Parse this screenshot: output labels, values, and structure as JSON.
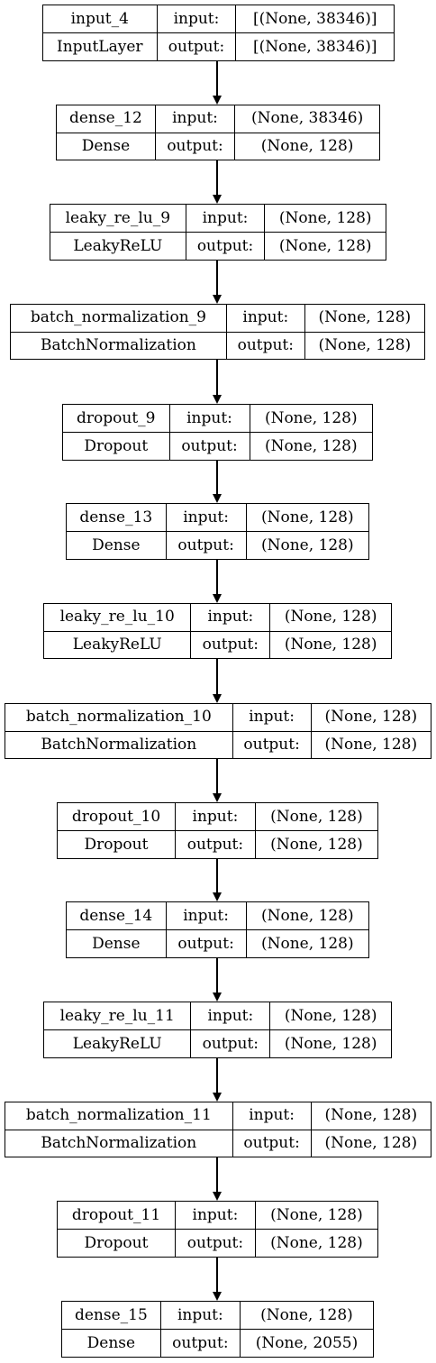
{
  "diagram": {
    "layers": [
      {
        "name": "input_4",
        "type": "InputLayer",
        "input_label": "input:",
        "input_shape": "[(None, 38346)]",
        "output_label": "output:",
        "output_shape": "[(None, 38346)]"
      },
      {
        "name": "dense_12",
        "type": "Dense",
        "input_label": "input:",
        "input_shape": "(None, 38346)",
        "output_label": "output:",
        "output_shape": "(None, 128)"
      },
      {
        "name": "leaky_re_lu_9",
        "type": "LeakyReLU",
        "input_label": "input:",
        "input_shape": "(None, 128)",
        "output_label": "output:",
        "output_shape": "(None, 128)"
      },
      {
        "name": "batch_normalization_9",
        "type": "BatchNormalization",
        "input_label": "input:",
        "input_shape": "(None, 128)",
        "output_label": "output:",
        "output_shape": "(None, 128)"
      },
      {
        "name": "dropout_9",
        "type": "Dropout",
        "input_label": "input:",
        "input_shape": "(None, 128)",
        "output_label": "output:",
        "output_shape": "(None, 128)"
      },
      {
        "name": "dense_13",
        "type": "Dense",
        "input_label": "input:",
        "input_shape": "(None, 128)",
        "output_label": "output:",
        "output_shape": "(None, 128)"
      },
      {
        "name": "leaky_re_lu_10",
        "type": "LeakyReLU",
        "input_label": "input:",
        "input_shape": "(None, 128)",
        "output_label": "output:",
        "output_shape": "(None, 128)"
      },
      {
        "name": "batch_normalization_10",
        "type": "BatchNormalization",
        "input_label": "input:",
        "input_shape": "(None, 128)",
        "output_label": "output:",
        "output_shape": "(None, 128)"
      },
      {
        "name": "dropout_10",
        "type": "Dropout",
        "input_label": "input:",
        "input_shape": "(None, 128)",
        "output_label": "output:",
        "output_shape": "(None, 128)"
      },
      {
        "name": "dense_14",
        "type": "Dense",
        "input_label": "input:",
        "input_shape": "(None, 128)",
        "output_label": "output:",
        "output_shape": "(None, 128)"
      },
      {
        "name": "leaky_re_lu_11",
        "type": "LeakyReLU",
        "input_label": "input:",
        "input_shape": "(None, 128)",
        "output_label": "output:",
        "output_shape": "(None, 128)"
      },
      {
        "name": "batch_normalization_11",
        "type": "BatchNormalization",
        "input_label": "input:",
        "input_shape": "(None, 128)",
        "output_label": "output:",
        "output_shape": "(None, 128)"
      },
      {
        "name": "dropout_11",
        "type": "Dropout",
        "input_label": "input:",
        "input_shape": "(None, 128)",
        "output_label": "output:",
        "output_shape": "(None, 128)"
      },
      {
        "name": "dense_15",
        "type": "Dense",
        "input_label": "input:",
        "input_shape": "(None, 128)",
        "output_label": "output:",
        "output_shape": "(None, 2055)"
      }
    ]
  }
}
